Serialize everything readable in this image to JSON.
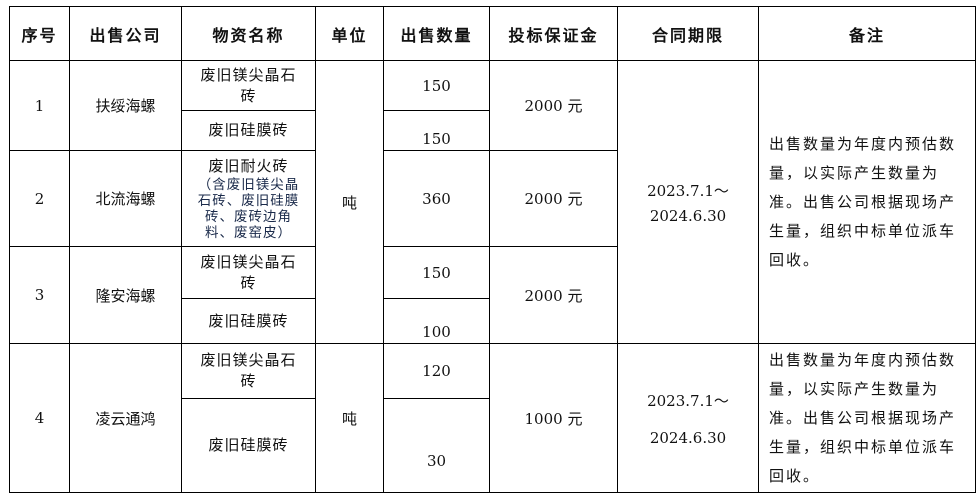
{
  "headers": [
    "序号",
    "出售公司",
    "物资名称",
    "单位",
    "出售数量",
    "投标保证金",
    "合同期限",
    "备注"
  ],
  "rows": [
    {
      "no": "1",
      "company": "扶绥海螺",
      "items": [
        {
          "name": "废旧镁尖晶石砖",
          "qty": "150"
        },
        {
          "name": "废旧硅膜砖",
          "qty": "150"
        }
      ],
      "deposit": "2000 元"
    },
    {
      "no": "2",
      "company": "北流海螺",
      "items": [
        {
          "name": "废旧耐火砖",
          "name_note": "（含废旧镁尖晶石砖、废旧硅膜砖、废砖边角料、废窑皮）",
          "qty": "360"
        }
      ],
      "deposit": "2000 元"
    },
    {
      "no": "3",
      "company": "隆安海螺",
      "items": [
        {
          "name": "废旧镁尖晶石砖",
          "qty": "150"
        },
        {
          "name": "废旧硅膜砖",
          "qty": "100"
        }
      ],
      "deposit": "2000 元"
    },
    {
      "no": "4",
      "company": "凌云通鸿",
      "items": [
        {
          "name": "废旧镁尖晶石砖",
          "qty": "120"
        },
        {
          "name": "废旧硅膜砖",
          "qty": "30"
        }
      ],
      "deposit": "1000 元"
    }
  ],
  "unit": "吨",
  "period_start": "2023.7.1～",
  "period_end": "2024.6.30",
  "remark": "出售数量为年度内预估数量，以实际产生数量为准。出售公司根据现场产生量，组织中标单位派车回收。"
}
